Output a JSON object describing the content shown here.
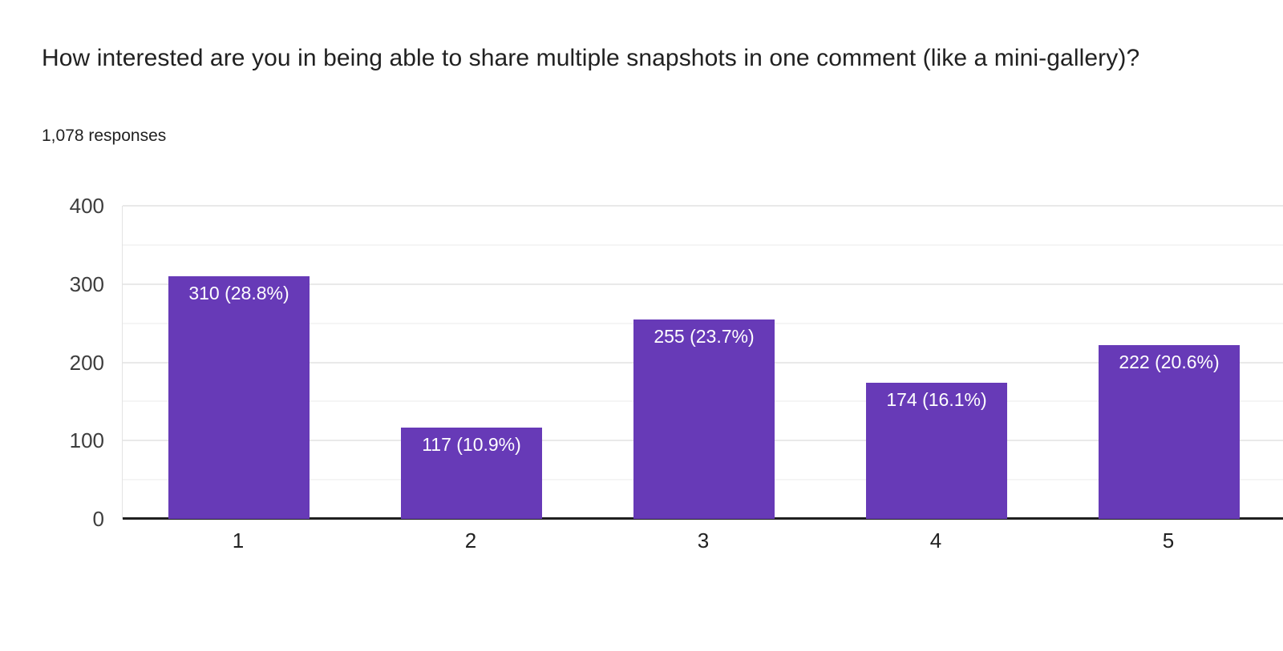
{
  "header": {
    "title": "How interested are you in being able to share multiple snapshots in one comment (like a mini-gallery)?",
    "responses_label": "1,078 responses"
  },
  "chart_data": {
    "type": "bar",
    "title": "How interested are you in being able to share multiple snapshots in one comment (like a mini-gallery)?",
    "subtitle": "1,078 responses",
    "categories": [
      "1",
      "2",
      "3",
      "4",
      "5"
    ],
    "values": [
      310,
      117,
      255,
      174,
      222
    ],
    "bar_labels": [
      "310 (28.8%)",
      "117 (10.9%)",
      "255 (23.7%)",
      "174 (16.1%)",
      "222 (20.6%)"
    ],
    "percentages": [
      28.8,
      10.9,
      23.7,
      16.1,
      20.6
    ],
    "total_responses": 1078,
    "xlabel": "",
    "ylabel": "",
    "ylim": [
      0,
      400
    ],
    "yticks_major": [
      0,
      100,
      200,
      300,
      400
    ],
    "yticks_minor": [
      50,
      150,
      250,
      350
    ],
    "grid": true,
    "legend": "none",
    "style": {
      "bar_color": "#673ab7",
      "bar_label_color": "#ffffff",
      "major_gridline_color": "#e9e9e9",
      "minor_gridline_color": "#f5f5f5",
      "baseline_color": "#1f1f1f"
    }
  }
}
